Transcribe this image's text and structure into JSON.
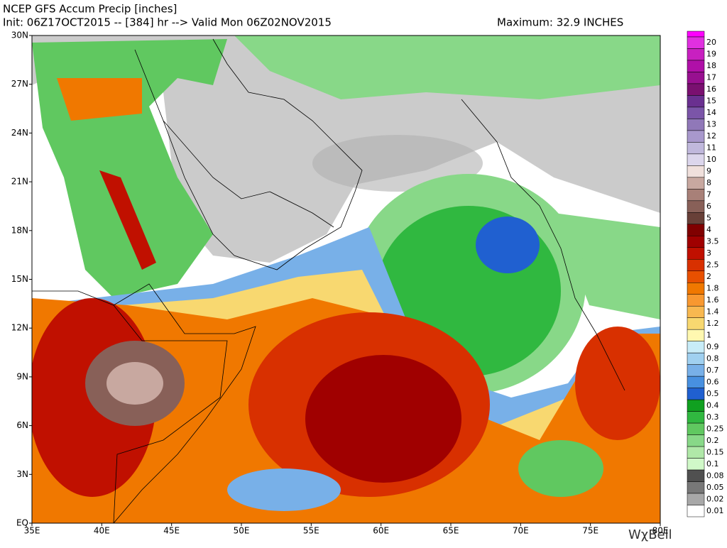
{
  "header": {
    "title": "NCEP GFS Accum Precip [inches]",
    "init": "Init: 06Z17OCT2015 -- [384] hr --> Valid Mon 06Z02NOV2015",
    "maximum": "Maximum: 32.9 INCHES"
  },
  "map": {
    "lat_labels": [
      "30N",
      "27N",
      "24N",
      "21N",
      "18N",
      "15N",
      "12N",
      "9N",
      "6N",
      "3N",
      "EQ"
    ],
    "lon_labels": [
      "35E",
      "40E",
      "45E",
      "50E",
      "55E",
      "60E",
      "65E",
      "70E",
      "75E",
      "80E"
    ]
  },
  "colorbar": [
    {
      "label": "20",
      "color": "#e030e0"
    },
    {
      "label": "19",
      "color": "#c820c0"
    },
    {
      "label": "18",
      "color": "#b010a8"
    },
    {
      "label": "17",
      "color": "#981090"
    },
    {
      "label": "16",
      "color": "#7a1070"
    },
    {
      "label": "15",
      "color": "#6a3090"
    },
    {
      "label": "14",
      "color": "#7b55a8"
    },
    {
      "label": "13",
      "color": "#9078b8"
    },
    {
      "label": "12",
      "color": "#a898cc"
    },
    {
      "label": "11",
      "color": "#c0b8dc"
    },
    {
      "label": "10",
      "color": "#dcd6ec"
    },
    {
      "label": "9",
      "color": "#f0e0dc"
    },
    {
      "label": "8",
      "color": "#c8a8a0"
    },
    {
      "label": "7",
      "color": "#a88078"
    },
    {
      "label": "6",
      "color": "#886058"
    },
    {
      "label": "5",
      "color": "#684038"
    },
    {
      "label": "4",
      "color": "#800000"
    },
    {
      "label": "3.5",
      "color": "#a00000"
    },
    {
      "label": "3",
      "color": "#c01000"
    },
    {
      "label": "2.5",
      "color": "#d83000"
    },
    {
      "label": "2",
      "color": "#e85000"
    },
    {
      "label": "1.8",
      "color": "#f07800"
    },
    {
      "label": "1.6",
      "color": "#f89830"
    },
    {
      "label": "1.4",
      "color": "#f8b850"
    },
    {
      "label": "1.2",
      "color": "#f8d870"
    },
    {
      "label": "1",
      "color": "#fff8b0"
    },
    {
      "label": "0.9",
      "color": "#c8ecf8"
    },
    {
      "label": "0.8",
      "color": "#a0d0f0"
    },
    {
      "label": "0.7",
      "color": "#78b0e8"
    },
    {
      "label": "0.6",
      "color": "#4890e0"
    },
    {
      "label": "0.5",
      "color": "#2060d0"
    },
    {
      "label": "0.4",
      "color": "#10a020"
    },
    {
      "label": "0.3",
      "color": "#30b840"
    },
    {
      "label": "0.25",
      "color": "#60c860"
    },
    {
      "label": "0.2",
      "color": "#88d888"
    },
    {
      "label": "0.15",
      "color": "#b0e8a8"
    },
    {
      "label": "0.1",
      "color": "#d0f8c8"
    },
    {
      "label": "0.08",
      "color": "#505050"
    },
    {
      "label": "0.05",
      "color": "#787878"
    },
    {
      "label": "0.02",
      "color": "#a8a8a8"
    },
    {
      "label": "0.01",
      "color": "#ffffff"
    }
  ],
  "watermark": "WχBell"
}
